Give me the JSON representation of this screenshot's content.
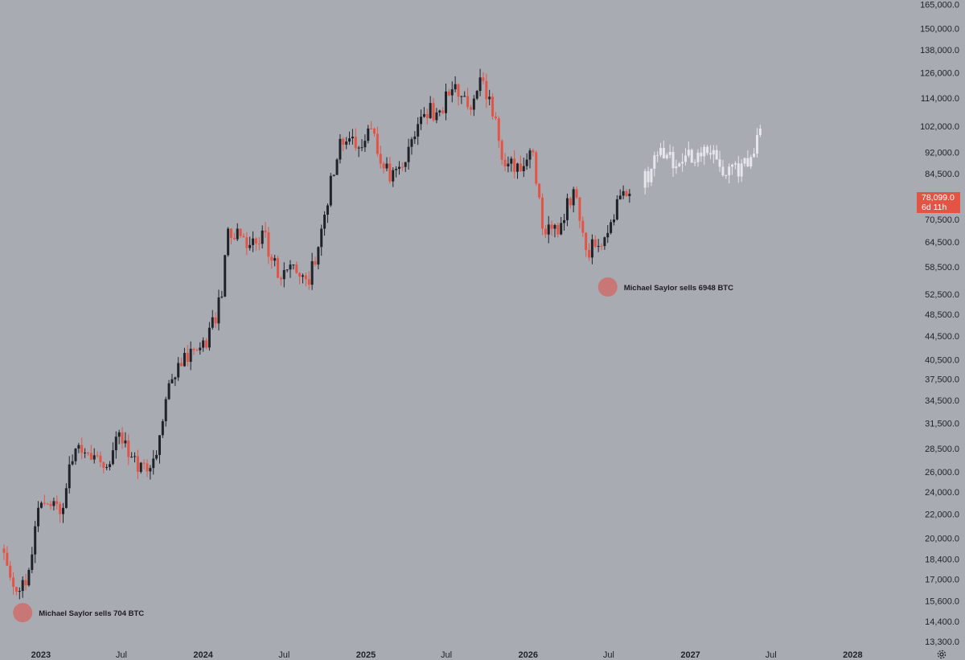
{
  "price_badge": {
    "price": "78,099.0",
    "countdown": "6d 11h",
    "color": "#e45444"
  },
  "icons": {
    "settings": "settings-icon"
  },
  "colors": {
    "background": "#a9abb3",
    "up_candle": "#1f2229",
    "down_candle": "#e45444",
    "projection": "#e6e7ec",
    "annotation_dot": "#c97676"
  },
  "chart_data": {
    "type": "candlestick",
    "title": "",
    "xlabel": "",
    "ylabel": "",
    "y_scale": "log",
    "y_range": [
      13000,
      168000
    ],
    "x_range": [
      "2022-10-01",
      "2028-05-15"
    ],
    "y_ticks": [
      "165,000.0",
      "150,000.0",
      "138,000.0",
      "126,000.0",
      "114,000.0",
      "102,000.0",
      "92,000.0",
      "84,500.0",
      "70,500.0",
      "64,500.0",
      "58,500.0",
      "52,500.0",
      "48,500.0",
      "44,500.0",
      "40,500.0",
      "37,500.0",
      "34,500.0",
      "31,500.0",
      "28,500.0",
      "26,000.0",
      "24,000.0",
      "22,000.0",
      "20,000.0",
      "18,400.0",
      "17,000.0",
      "15,600.0",
      "14,400.0",
      "13,300.0"
    ],
    "x_ticks": [
      {
        "label": "2023",
        "date": "2023-01-01",
        "year": true
      },
      {
        "label": "Jul",
        "date": "2023-07-01",
        "year": false
      },
      {
        "label": "2024",
        "date": "2024-01-01",
        "year": true
      },
      {
        "label": "Jul",
        "date": "2024-07-01",
        "year": false
      },
      {
        "label": "2025",
        "date": "2025-01-01",
        "year": true
      },
      {
        "label": "Jul",
        "date": "2025-07-01",
        "year": false
      },
      {
        "label": "2026",
        "date": "2026-01-01",
        "year": true
      },
      {
        "label": "Jul",
        "date": "2026-07-01",
        "year": false
      },
      {
        "label": "2027",
        "date": "2027-01-01",
        "year": true
      },
      {
        "label": "Jul",
        "date": "2027-07-01",
        "year": false
      },
      {
        "label": "2028",
        "date": "2028-01-01",
        "year": true
      }
    ],
    "series": [
      {
        "kind": "weekly-ohlc",
        "points": [
          {
            "date": "2022-10-03",
            "open": 19400,
            "high": 21000,
            "low": 18600,
            "close": 19200
          },
          {
            "date": "2022-10-31",
            "open": 20500,
            "high": 21400,
            "low": 15600,
            "close": 16500
          },
          {
            "date": "2022-11-28",
            "open": 17000,
            "high": 18200,
            "low": 16300,
            "close": 16600
          },
          {
            "date": "2023-01-02",
            "open": 16600,
            "high": 23500,
            "low": 16500,
            "close": 23000
          },
          {
            "date": "2023-02-13",
            "open": 22800,
            "high": 25200,
            "low": 20000,
            "close": 22000
          },
          {
            "date": "2023-03-20",
            "open": 22000,
            "high": 28600,
            "low": 21800,
            "close": 28500
          },
          {
            "date": "2023-04-24",
            "open": 29500,
            "high": 31000,
            "low": 27000,
            "close": 27300
          },
          {
            "date": "2023-05-29",
            "open": 27300,
            "high": 28000,
            "low": 24800,
            "close": 26500
          },
          {
            "date": "2023-06-26",
            "open": 26500,
            "high": 31800,
            "low": 26300,
            "close": 30400
          },
          {
            "date": "2023-08-07",
            "open": 30000,
            "high": 30300,
            "low": 25000,
            "close": 26000
          },
          {
            "date": "2023-09-18",
            "open": 26000,
            "high": 28500,
            "low": 25800,
            "close": 27800
          },
          {
            "date": "2023-10-23",
            "open": 27800,
            "high": 38000,
            "low": 27700,
            "close": 37500
          },
          {
            "date": "2023-12-04",
            "open": 37500,
            "high": 44800,
            "low": 37200,
            "close": 42300
          },
          {
            "date": "2024-01-08",
            "open": 44000,
            "high": 48900,
            "low": 38500,
            "close": 42500
          },
          {
            "date": "2024-02-12",
            "open": 43000,
            "high": 52000,
            "low": 42500,
            "close": 52000
          },
          {
            "date": "2024-02-26",
            "open": 52000,
            "high": 73700,
            "low": 51000,
            "close": 68000
          },
          {
            "date": "2024-04-08",
            "open": 69000,
            "high": 72500,
            "low": 59000,
            "close": 63000
          },
          {
            "date": "2024-05-13",
            "open": 63000,
            "high": 72000,
            "low": 60000,
            "close": 67500
          },
          {
            "date": "2024-06-17",
            "open": 66000,
            "high": 66500,
            "low": 54000,
            "close": 56000
          },
          {
            "date": "2024-07-15",
            "open": 57000,
            "high": 70000,
            "low": 49000,
            "close": 59000
          },
          {
            "date": "2024-08-26",
            "open": 59000,
            "high": 61000,
            "low": 52500,
            "close": 54500
          },
          {
            "date": "2024-09-23",
            "open": 54500,
            "high": 69500,
            "low": 53800,
            "close": 68000
          },
          {
            "date": "2024-11-04",
            "open": 68000,
            "high": 99500,
            "low": 67000,
            "close": 97000
          },
          {
            "date": "2024-12-09",
            "open": 97000,
            "high": 108000,
            "low": 91500,
            "close": 93500
          },
          {
            "date": "2025-01-13",
            "open": 94000,
            "high": 109500,
            "low": 89000,
            "close": 101000
          },
          {
            "date": "2025-02-24",
            "open": 96000,
            "high": 97000,
            "low": 76500,
            "close": 82000
          },
          {
            "date": "2025-04-07",
            "open": 79000,
            "high": 95500,
            "low": 74500,
            "close": 94000
          },
          {
            "date": "2025-05-12",
            "open": 94500,
            "high": 112000,
            "low": 93500,
            "close": 107000
          },
          {
            "date": "2025-06-16",
            "open": 107000,
            "high": 110000,
            "low": 98500,
            "close": 108500
          },
          {
            "date": "2025-07-14",
            "open": 108500,
            "high": 123000,
            "low": 107500,
            "close": 118000
          },
          {
            "date": "2025-08-18",
            "open": 118000,
            "high": 124500,
            "low": 108000,
            "close": 110000
          },
          {
            "date": "2025-09-22",
            "open": 110000,
            "high": 126000,
            "low": 108500,
            "close": 122000
          },
          {
            "date": "2025-10-13",
            "open": 121000,
            "high": 122000,
            "low": 103500,
            "close": 106000
          },
          {
            "date": "2025-11-10",
            "open": 106000,
            "high": 107500,
            "low": 80500,
            "close": 87000
          },
          {
            "date": "2025-12-08",
            "open": 87000,
            "high": 95000,
            "low": 84500,
            "close": 88000
          },
          {
            "date": "2026-01-12",
            "open": 89000,
            "high": 97500,
            "low": 86000,
            "close": 92000
          },
          {
            "date": "2026-02-02",
            "open": 90000,
            "high": 91000,
            "low": 60000,
            "close": 68000
          },
          {
            "date": "2026-03-09",
            "open": 68000,
            "high": 72000,
            "low": 63500,
            "close": 66500
          },
          {
            "date": "2026-04-13",
            "open": 67000,
            "high": 80000,
            "low": 66000,
            "close": 79500
          },
          {
            "date": "2026-05-11",
            "open": 79000,
            "high": 80000,
            "low": 60000,
            "close": 62500
          },
          {
            "date": "2026-06-15",
            "open": 62500,
            "high": 65500,
            "low": 57000,
            "close": 63500
          },
          {
            "date": "2026-07-27",
            "open": 63000,
            "high": 78500,
            "low": 62500,
            "close": 77500
          },
          {
            "date": "2026-08-17",
            "open": 77500,
            "high": 79500,
            "low": 74500,
            "close": 78099
          }
        ]
      },
      {
        "kind": "projection",
        "points": [
          {
            "date": "2026-09-14",
            "open": 74000,
            "high": 82000,
            "low": 69000,
            "close": 80000
          },
          {
            "date": "2026-10-19",
            "open": 88000,
            "high": 95000,
            "low": 86500,
            "close": 91000
          },
          {
            "date": "2026-12-07",
            "open": 89000,
            "high": 92000,
            "low": 84000,
            "close": 88000
          },
          {
            "date": "2027-02-01",
            "open": 92000,
            "high": 96500,
            "low": 88500,
            "close": 94000
          },
          {
            "date": "2027-03-22",
            "open": 91000,
            "high": 94000,
            "low": 80500,
            "close": 84000
          },
          {
            "date": "2027-05-10",
            "open": 86000,
            "high": 89000,
            "low": 82000,
            "close": 87000
          },
          {
            "date": "2027-06-07",
            "open": 90000,
            "high": 103500,
            "low": 88000,
            "close": 101000
          }
        ]
      }
    ],
    "annotations": [
      {
        "text": "Michael Saylor sells 704 BTC",
        "date": "2022-11-21",
        "price": 14900
      },
      {
        "text": "Michael Saylor sells 6948 BTC",
        "date": "2026-06-29",
        "price": 54000
      }
    ]
  }
}
